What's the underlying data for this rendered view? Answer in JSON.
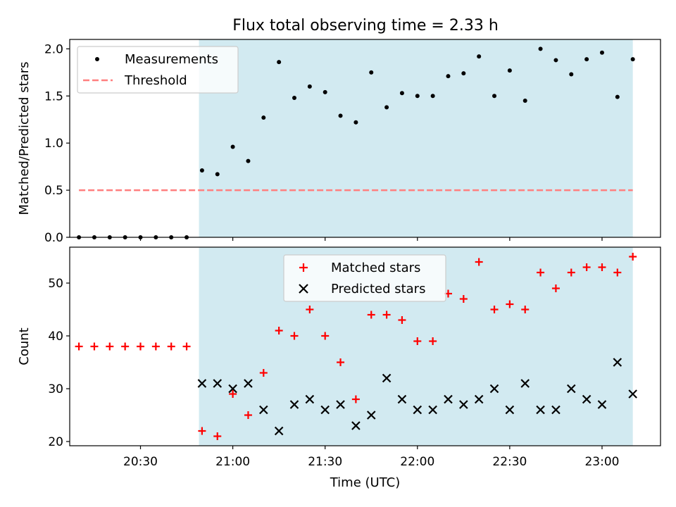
{
  "figure": {
    "title": "Flux total observing time = 2.33 h"
  },
  "chart_data": [
    {
      "type": "scatter",
      "panel": "top",
      "ylabel": "Matched/Predicted stars",
      "ylim": [
        0,
        2.1
      ],
      "yticks": [
        0.0,
        0.5,
        1.0,
        1.5,
        2.0
      ],
      "ytick_labels": [
        "0.0",
        "0.5",
        "1.0",
        "1.5",
        "2.0"
      ],
      "xlim": [
        "20:07",
        "23:19"
      ],
      "shaded_region": {
        "start": "20:49",
        "end": "23:10",
        "color": "#add8e6"
      },
      "series": [
        {
          "name": "Measurements",
          "marker": "dot",
          "color": "#000000",
          "x": [
            "20:10",
            "20:15",
            "20:20",
            "20:25",
            "20:30",
            "20:35",
            "20:40",
            "20:45",
            "20:50",
            "20:55",
            "21:00",
            "21:05",
            "21:10",
            "21:15",
            "21:20",
            "21:25",
            "21:30",
            "21:35",
            "21:40",
            "21:45",
            "21:50",
            "21:55",
            "22:00",
            "22:05",
            "22:10",
            "22:15",
            "22:20",
            "22:25",
            "22:30",
            "22:35",
            "22:40",
            "22:45",
            "22:50",
            "22:55",
            "23:00",
            "23:05",
            "23:10"
          ],
          "y": [
            0,
            0,
            0,
            0,
            0,
            0,
            0,
            0,
            0.71,
            0.67,
            0.96,
            0.81,
            1.27,
            1.86,
            1.48,
            1.6,
            1.54,
            1.29,
            1.22,
            1.75,
            1.38,
            1.53,
            1.5,
            1.5,
            1.71,
            1.74,
            1.92,
            1.5,
            1.77,
            1.45,
            2.0,
            1.88,
            1.73,
            1.89,
            1.96,
            1.49,
            1.89
          ]
        },
        {
          "name": "Threshold",
          "style": "dashed",
          "color": "#ff7f7f",
          "x": [
            "20:10",
            "23:10"
          ],
          "y": [
            0.5,
            0.5
          ]
        }
      ],
      "legend": {
        "placement": "upper-left"
      }
    },
    {
      "type": "scatter",
      "panel": "bottom",
      "xlabel": "Time (UTC)",
      "ylabel": "Count",
      "ylim": [
        19.2,
        56.8
      ],
      "yticks": [
        20,
        30,
        40,
        50
      ],
      "ytick_labels": [
        "20",
        "30",
        "40",
        "50"
      ],
      "xlim": [
        "20:07",
        "23:19"
      ],
      "xticks": [
        "20:30",
        "21:00",
        "21:30",
        "22:00",
        "22:30",
        "23:00"
      ],
      "xtick_labels": [
        "20:30",
        "21:00",
        "21:30",
        "22:00",
        "22:30",
        "23:00"
      ],
      "shaded_region": {
        "start": "20:49",
        "end": "23:10",
        "color": "#add8e6"
      },
      "series": [
        {
          "name": "Matched stars",
          "marker": "plus",
          "color": "#ff0000",
          "x": [
            "20:10",
            "20:15",
            "20:20",
            "20:25",
            "20:30",
            "20:35",
            "20:40",
            "20:45",
            "20:50",
            "20:55",
            "21:00",
            "21:05",
            "21:10",
            "21:15",
            "21:20",
            "21:25",
            "21:30",
            "21:35",
            "21:40",
            "21:45",
            "21:50",
            "21:55",
            "22:00",
            "22:05",
            "22:10",
            "22:15",
            "22:20",
            "22:25",
            "22:30",
            "22:35",
            "22:40",
            "22:45",
            "22:50",
            "22:55",
            "23:00",
            "23:05",
            "23:10"
          ],
          "y": [
            38,
            38,
            38,
            38,
            38,
            38,
            38,
            38,
            22,
            21,
            29,
            25,
            33,
            41,
            40,
            45,
            40,
            35,
            28,
            44,
            44,
            43,
            39,
            39,
            48,
            47,
            54,
            45,
            46,
            45,
            52,
            49,
            52,
            53,
            53,
            52,
            55
          ]
        },
        {
          "name": "Predicted stars",
          "marker": "x",
          "color": "#000000",
          "x": [
            "20:50",
            "20:55",
            "21:00",
            "21:05",
            "21:10",
            "21:15",
            "21:20",
            "21:25",
            "21:30",
            "21:35",
            "21:40",
            "21:45",
            "21:50",
            "21:55",
            "22:00",
            "22:05",
            "22:10",
            "22:15",
            "22:20",
            "22:25",
            "22:30",
            "22:35",
            "22:40",
            "22:45",
            "22:50",
            "22:55",
            "23:00",
            "23:05",
            "23:10"
          ],
          "y": [
            31,
            31,
            30,
            31,
            26,
            22,
            27,
            28,
            26,
            27,
            23,
            25,
            32,
            28,
            26,
            26,
            28,
            27,
            28,
            30,
            26,
            31,
            26,
            26,
            30,
            28,
            27,
            35,
            29
          ]
        }
      ],
      "legend": {
        "placement": "upper-center"
      }
    }
  ]
}
